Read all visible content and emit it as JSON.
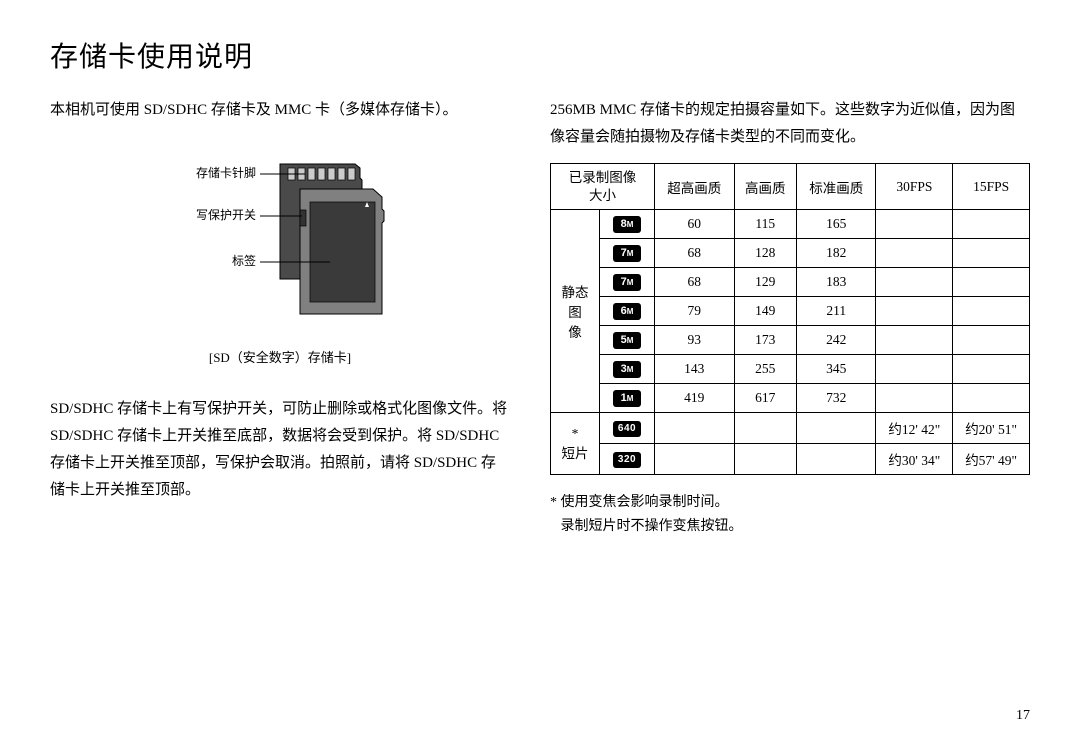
{
  "page": {
    "title": "存储卡使用说明",
    "page_number": "17"
  },
  "left": {
    "intro": "本相机可使用 SD/SDHC 存储卡及 MMC 卡（多媒体存储卡）。",
    "diagram_labels": {
      "pins": "存储卡针脚",
      "switch": "写保护开关",
      "label": "标签"
    },
    "diagram_caption": "[SD（安全数字）存储卡]",
    "protect_text": "SD/SDHC 存储卡上有写保护开关，可防止删除或格式化图像文件。将 SD/SDHC 存储卡上开关推至底部，数据将会受到保护。将 SD/SDHC 存储卡上开关推至顶部，写保护会取消。拍照前，请将 SD/SDHC 存储卡上开关推至顶部。"
  },
  "right": {
    "intro": "256MB MMC 存储卡的规定拍摄容量如下。这些数字为近似值，因为图像容量会随拍摄物及存储卡类型的不同而变化。",
    "table": {
      "header_imgsize": "已录制图像",
      "header_imgsize2": "大小",
      "cols": [
        "超高画质",
        "高画质",
        "标准画质",
        "30FPS",
        "15FPS"
      ],
      "still_label": "静态图像",
      "movie_label": "*\n短片",
      "still_rows": [
        {
          "badge": "8",
          "vals": [
            "60",
            "115",
            "165",
            "",
            ""
          ]
        },
        {
          "badge": "7",
          "vals": [
            "68",
            "128",
            "182",
            "",
            ""
          ]
        },
        {
          "badge": "7",
          "vals": [
            "68",
            "129",
            "183",
            "",
            ""
          ]
        },
        {
          "badge": "6",
          "vals": [
            "79",
            "149",
            "211",
            "",
            ""
          ]
        },
        {
          "badge": "5",
          "vals": [
            "93",
            "173",
            "242",
            "",
            ""
          ]
        },
        {
          "badge": "3",
          "vals": [
            "143",
            "255",
            "345",
            "",
            ""
          ]
        },
        {
          "badge": "1",
          "vals": [
            "419",
            "617",
            "732",
            "",
            ""
          ]
        }
      ],
      "movie_rows": [
        {
          "badge": "640",
          "vals": [
            "",
            "",
            "",
            "约12' 42\"",
            "约20' 51\""
          ]
        },
        {
          "badge": "320",
          "vals": [
            "",
            "",
            "",
            "约30' 34\"",
            "约57' 49\""
          ]
        }
      ]
    },
    "footnote1": "* 使用变焦会影响录制时间。",
    "footnote2": "  录制短片时不操作变焦按钮。"
  }
}
